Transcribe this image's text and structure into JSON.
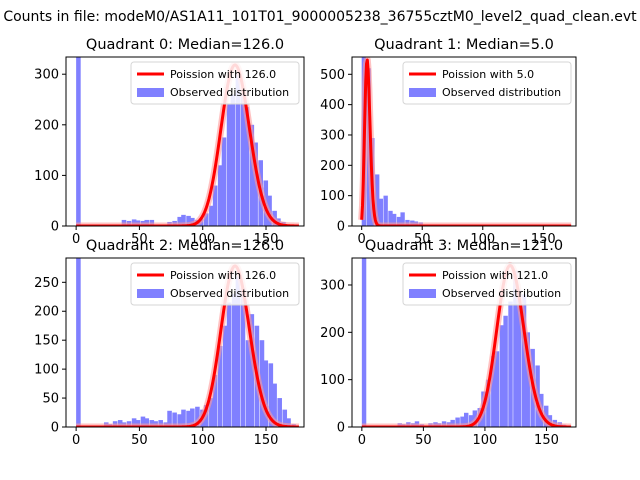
{
  "figure": {
    "suptitle": "Counts in file: modeM0/AS1A11_101T01_9000005238_36755cztM0_level2_quad_clean.evt"
  },
  "colors": {
    "histogram": "#8080ff",
    "fit": "#ff0000",
    "fit_halo": "#ff9a9a",
    "axis": "#000000",
    "background": "#ffffff"
  },
  "chart_data": [
    {
      "type": "bar",
      "title": "Quadrant 0: Median=126.0",
      "xlim": [
        -8,
        180
      ],
      "ylim": [
        0,
        334
      ],
      "xticks": [
        0,
        50,
        100,
        150
      ],
      "yticks": [
        0,
        100,
        200,
        300
      ],
      "legend": {
        "position": "top-right",
        "fit_label": "Poission with 126.0",
        "hist_label": "Observed distribution"
      },
      "bin_width": 3.6,
      "histogram": [
        [
          0,
          335
        ],
        [
          36,
          12
        ],
        [
          40,
          10
        ],
        [
          44,
          13
        ],
        [
          47,
          11
        ],
        [
          51,
          10
        ],
        [
          54,
          12
        ],
        [
          58,
          12
        ],
        [
          72,
          8
        ],
        [
          76,
          10
        ],
        [
          80,
          18
        ],
        [
          83,
          22
        ],
        [
          87,
          20
        ],
        [
          90,
          16
        ],
        [
          94,
          12
        ],
        [
          97,
          15
        ],
        [
          101,
          25
        ],
        [
          105,
          40
        ],
        [
          108,
          80
        ],
        [
          112,
          120
        ],
        [
          115,
          175
        ],
        [
          119,
          240
        ],
        [
          122,
          260
        ],
        [
          126,
          300
        ],
        [
          130,
          260
        ],
        [
          133,
          235
        ],
        [
          137,
          200
        ],
        [
          140,
          165
        ],
        [
          144,
          130
        ],
        [
          148,
          90
        ],
        [
          151,
          60
        ],
        [
          155,
          30
        ],
        [
          158,
          15
        ],
        [
          162,
          8
        ]
      ],
      "fit": {
        "mean": 126.0,
        "max": 318
      }
    },
    {
      "type": "bar",
      "title": "Quadrant 1: Median=5.0",
      "xlim": [
        -8,
        177
      ],
      "ylim": [
        0,
        557
      ],
      "xticks": [
        0,
        50,
        100,
        150
      ],
      "yticks": [
        0,
        100,
        200,
        300,
        400,
        500
      ],
      "legend": {
        "position": "top-right",
        "fit_label": "Poission with 5.0",
        "hist_label": "Observed distribution"
      },
      "bin_width": 3.6,
      "histogram": [
        [
          0,
          557
        ],
        [
          4,
          520
        ],
        [
          7,
          290
        ],
        [
          11,
          170
        ],
        [
          14,
          90
        ],
        [
          18,
          100
        ],
        [
          22,
          50
        ],
        [
          25,
          40
        ],
        [
          29,
          30
        ],
        [
          32,
          45
        ],
        [
          36,
          20
        ],
        [
          40,
          18
        ],
        [
          43,
          15
        ],
        [
          47,
          12
        ],
        [
          51,
          5
        ],
        [
          54,
          4
        ],
        [
          58,
          3
        ],
        [
          61,
          2
        ],
        [
          65,
          2
        ],
        [
          72,
          2
        ]
      ],
      "fit": {
        "mean": 5.0,
        "max": 535
      }
    },
    {
      "type": "bar",
      "title": "Quadrant 2: Median=126.0",
      "xlim": [
        -8,
        180
      ],
      "ylim": [
        0,
        292
      ],
      "xticks": [
        0,
        50,
        100,
        150
      ],
      "yticks": [
        0,
        50,
        100,
        150,
        200,
        250
      ],
      "legend": {
        "position": "top-right",
        "fit_label": "Poission with 126.0",
        "hist_label": "Observed distribution"
      },
      "bin_width": 3.6,
      "histogram": [
        [
          0,
          293
        ],
        [
          22,
          8
        ],
        [
          25,
          5
        ],
        [
          29,
          10
        ],
        [
          33,
          12
        ],
        [
          36,
          8
        ],
        [
          40,
          10
        ],
        [
          44,
          15
        ],
        [
          47,
          12
        ],
        [
          51,
          18
        ],
        [
          54,
          15
        ],
        [
          58,
          12
        ],
        [
          61,
          10
        ],
        [
          65,
          12
        ],
        [
          69,
          8
        ],
        [
          72,
          28
        ],
        [
          76,
          25
        ],
        [
          80,
          22
        ],
        [
          83,
          30
        ],
        [
          87,
          28
        ],
        [
          90,
          32
        ],
        [
          94,
          35
        ],
        [
          98,
          30
        ],
        [
          101,
          38
        ],
        [
          105,
          50
        ],
        [
          108,
          90
        ],
        [
          112,
          140
        ],
        [
          116,
          175
        ],
        [
          119,
          215
        ],
        [
          123,
          230
        ],
        [
          126,
          260
        ],
        [
          130,
          240
        ],
        [
          134,
          150
        ],
        [
          137,
          195
        ],
        [
          141,
          175
        ],
        [
          145,
          150
        ],
        [
          148,
          115
        ],
        [
          152,
          110
        ],
        [
          155,
          75
        ],
        [
          159,
          50
        ],
        [
          163,
          30
        ],
        [
          166,
          15
        ],
        [
          170,
          5
        ]
      ],
      "fit": {
        "mean": 126.0,
        "max": 278
      }
    },
    {
      "type": "bar",
      "title": "Quadrant 3: Median=121.0",
      "xlim": [
        -8,
        174
      ],
      "ylim": [
        0,
        357
      ],
      "xticks": [
        0,
        50,
        100,
        150
      ],
      "yticks": [
        0,
        100,
        200,
        300
      ],
      "legend": {
        "position": "top-right",
        "fit_label": "Poission with 121.0",
        "hist_label": "Observed distribution"
      },
      "bin_width": 3.6,
      "histogram": [
        [
          0,
          358
        ],
        [
          29,
          8
        ],
        [
          32,
          6
        ],
        [
          36,
          10
        ],
        [
          40,
          8
        ],
        [
          43,
          12
        ],
        [
          47,
          6
        ],
        [
          54,
          8
        ],
        [
          58,
          10
        ],
        [
          61,
          8
        ],
        [
          65,
          12
        ],
        [
          69,
          10
        ],
        [
          72,
          15
        ],
        [
          76,
          20
        ],
        [
          80,
          22
        ],
        [
          83,
          30
        ],
        [
          87,
          25
        ],
        [
          90,
          35
        ],
        [
          94,
          40
        ],
        [
          97,
          75
        ],
        [
          101,
          100
        ],
        [
          105,
          150
        ],
        [
          108,
          160
        ],
        [
          112,
          215
        ],
        [
          115,
          235
        ],
        [
          119,
          265
        ],
        [
          123,
          330
        ],
        [
          126,
          290
        ],
        [
          130,
          280
        ],
        [
          133,
          200
        ],
        [
          137,
          165
        ],
        [
          141,
          130
        ],
        [
          144,
          70
        ],
        [
          148,
          45
        ],
        [
          151,
          25
        ],
        [
          155,
          15
        ],
        [
          159,
          10
        ],
        [
          162,
          5
        ],
        [
          166,
          3
        ]
      ],
      "fit": {
        "mean": 121.0,
        "max": 341
      }
    }
  ]
}
